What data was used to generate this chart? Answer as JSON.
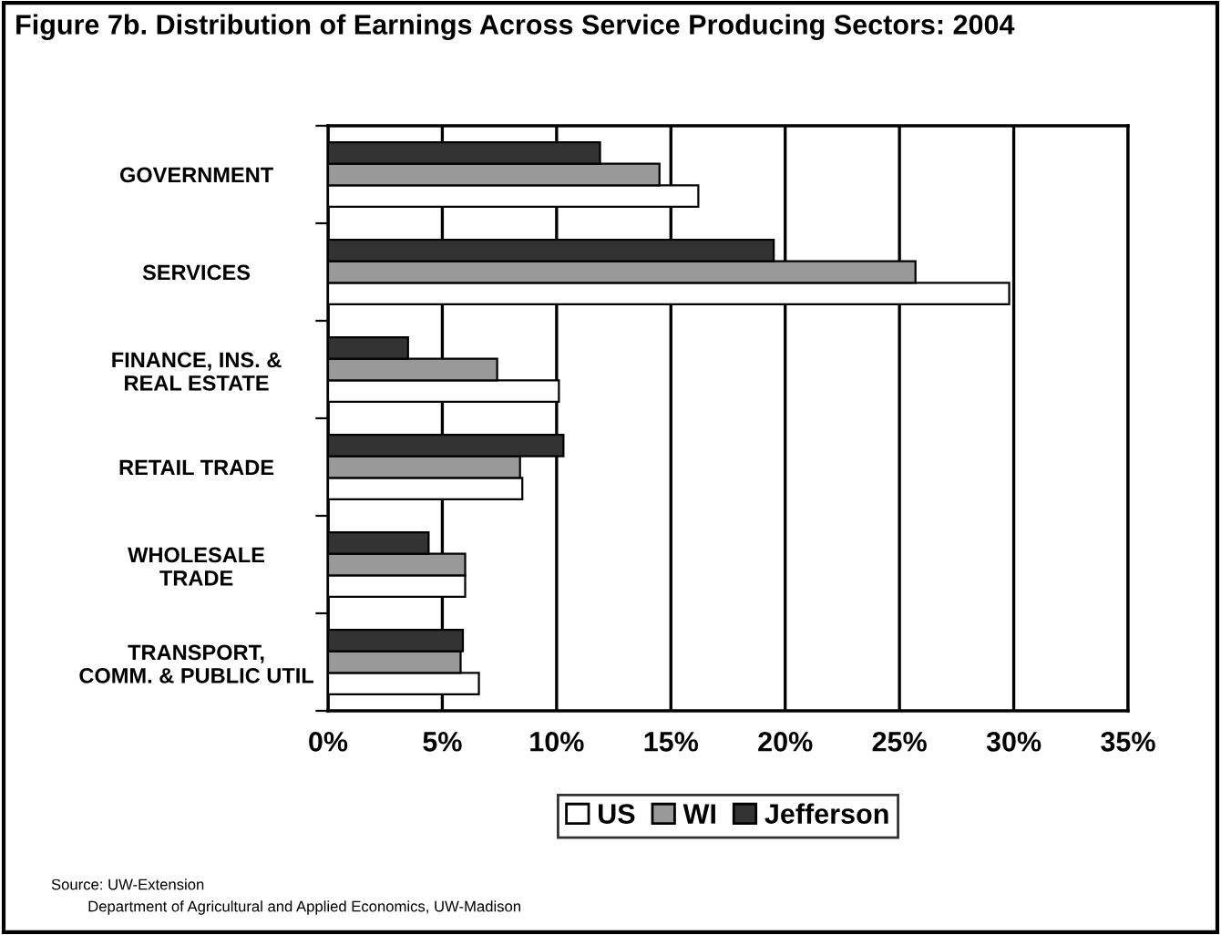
{
  "chart_data": {
    "type": "bar",
    "orientation": "horizontal",
    "title": "Figure 7b. Distribution of Earnings Across Service Producing Sectors: 2004",
    "categories": [
      "GOVERNMENT",
      "SERVICES",
      "FINANCE, INS. &\nREAL ESTATE",
      "RETAIL TRADE",
      "WHOLESALE\nTRADE",
      "TRANSPORT,\nCOMM. & PUBLIC UTIL"
    ],
    "series": [
      {
        "name": "US",
        "color": "#ffffff",
        "values": [
          16.2,
          29.8,
          10.1,
          8.5,
          6.0,
          6.6
        ]
      },
      {
        "name": "WI",
        "color": "#999999",
        "values": [
          14.5,
          25.7,
          7.4,
          8.4,
          6.0,
          5.8
        ]
      },
      {
        "name": "Jefferson",
        "color": "#333333",
        "values": [
          11.9,
          19.5,
          3.5,
          10.3,
          4.4,
          5.9
        ]
      }
    ],
    "xlim": [
      0,
      35
    ],
    "xticks": [
      {
        "value": 0,
        "label": "0%"
      },
      {
        "value": 5,
        "label": "5%"
      },
      {
        "value": 10,
        "label": "10%"
      },
      {
        "value": 15,
        "label": "15%"
      },
      {
        "value": 20,
        "label": "20%"
      },
      {
        "value": 25,
        "label": "25%"
      },
      {
        "value": 30,
        "label": "30%"
      },
      {
        "value": 35,
        "label": "35%"
      }
    ],
    "grid": "x",
    "legend": "bottom",
    "annotations": [
      "Source: UW-Extension",
      "Department of Agricultural and Applied Economics, UW-Madison"
    ]
  }
}
